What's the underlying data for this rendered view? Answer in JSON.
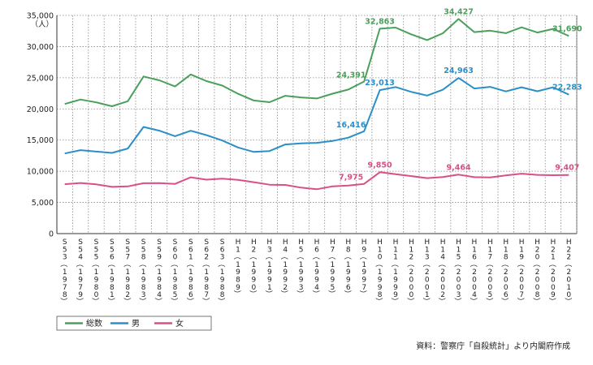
{
  "chart_data": {
    "type": "line",
    "y_unit": "（人）",
    "ylim": [
      0,
      35000
    ],
    "yticks": [
      "0",
      "5,000",
      "10,000",
      "15,000",
      "20,000",
      "25,000",
      "30,000",
      "35,000"
    ],
    "grid": "vertical and horizontal dotted",
    "categories": [
      "S53（1978）",
      "S54（1979）",
      "S55（1980）",
      "S56（1981）",
      "S57（1982）",
      "S58（1983）",
      "S59（1984）",
      "S60（1985）",
      "S61（1986）",
      "S62（1987）",
      "S63（1988）",
      "H1（1989）",
      "H2（1990）",
      "H3（1991）",
      "H4（1992）",
      "H5（1993）",
      "H6（1994）",
      "H7（1995）",
      "H8（1996）",
      "H9（1997）",
      "H10（1998）",
      "H11（1999）",
      "H12（2000）",
      "H13（2001）",
      "H14（2002）",
      "H15（2003）",
      "H16（2004）",
      "H17（2005）",
      "H18（2006）",
      "H19（2007）",
      "H20（2008）",
      "H21（2009）",
      "H22（2010）"
    ],
    "category_ticks": [
      [
        "S",
        "5",
        "3",
        "（",
        "1",
        "9",
        "7",
        "8",
        "）"
      ],
      [
        "S",
        "5",
        "4",
        "（",
        "1",
        "9",
        "7",
        "9",
        "）"
      ],
      [
        "S",
        "5",
        "5",
        "（",
        "1",
        "9",
        "8",
        "0",
        "）"
      ],
      [
        "S",
        "5",
        "6",
        "（",
        "1",
        "9",
        "8",
        "1",
        "）"
      ],
      [
        "S",
        "5",
        "7",
        "（",
        "1",
        "9",
        "8",
        "2",
        "）"
      ],
      [
        "S",
        "5",
        "8",
        "（",
        "1",
        "9",
        "8",
        "3",
        "）"
      ],
      [
        "S",
        "5",
        "9",
        "（",
        "1",
        "9",
        "8",
        "4",
        "）"
      ],
      [
        "S",
        "6",
        "0",
        "（",
        "1",
        "9",
        "8",
        "5",
        "）"
      ],
      [
        "S",
        "6",
        "1",
        "（",
        "1",
        "9",
        "8",
        "6",
        "）"
      ],
      [
        "S",
        "6",
        "2",
        "（",
        "1",
        "9",
        "8",
        "7",
        "）"
      ],
      [
        "S",
        "6",
        "3",
        "（",
        "1",
        "9",
        "8",
        "8",
        "）"
      ],
      [
        "H",
        "1",
        "（",
        "1",
        "9",
        "8",
        "9",
        "）"
      ],
      [
        "H",
        "2",
        "（",
        "1",
        "9",
        "9",
        "0",
        "）"
      ],
      [
        "H",
        "3",
        "（",
        "1",
        "9",
        "9",
        "1",
        "）"
      ],
      [
        "H",
        "4",
        "（",
        "1",
        "9",
        "9",
        "2",
        "）"
      ],
      [
        "H",
        "5",
        "（",
        "1",
        "9",
        "9",
        "3",
        "）"
      ],
      [
        "H",
        "6",
        "（",
        "1",
        "9",
        "9",
        "4",
        "）"
      ],
      [
        "H",
        "7",
        "（",
        "1",
        "9",
        "9",
        "5",
        "）"
      ],
      [
        "H",
        "8",
        "（",
        "1",
        "9",
        "9",
        "6",
        "）"
      ],
      [
        "H",
        "9",
        "（",
        "1",
        "9",
        "9",
        "7",
        "）"
      ],
      [
        "H",
        "1",
        "0",
        "（",
        "1",
        "9",
        "9",
        "8",
        "）"
      ],
      [
        "H",
        "1",
        "1",
        "（",
        "1",
        "9",
        "9",
        "9",
        "）"
      ],
      [
        "H",
        "1",
        "2",
        "（",
        "2",
        "0",
        "0",
        "0",
        "）"
      ],
      [
        "H",
        "1",
        "3",
        "（",
        "2",
        "0",
        "0",
        "1",
        "）"
      ],
      [
        "H",
        "1",
        "4",
        "（",
        "2",
        "0",
        "0",
        "2",
        "）"
      ],
      [
        "H",
        "1",
        "5",
        "（",
        "2",
        "0",
        "0",
        "3",
        "）"
      ],
      [
        "H",
        "1",
        "6",
        "（",
        "2",
        "0",
        "0",
        "4",
        "）"
      ],
      [
        "H",
        "1",
        "7",
        "（",
        "2",
        "0",
        "0",
        "5",
        "）"
      ],
      [
        "H",
        "1",
        "8",
        "（",
        "2",
        "0",
        "0",
        "6",
        "）"
      ],
      [
        "H",
        "1",
        "9",
        "（",
        "2",
        "0",
        "0",
        "7",
        "）"
      ],
      [
        "H",
        "2",
        "0",
        "（",
        "2",
        "0",
        "0",
        "8",
        "）"
      ],
      [
        "H",
        "2",
        "1",
        "（",
        "2",
        "0",
        "0",
        "9",
        "）"
      ],
      [
        "H",
        "2",
        "2",
        "（",
        "2",
        "0",
        "1",
        "0",
        "）"
      ]
    ],
    "series": [
      {
        "name": "総数",
        "color": "#4aa05a",
        "values": [
          20788,
          21503,
          21048,
          20434,
          21228,
          25202,
          24596,
          23599,
          25524,
          24460,
          23742,
          22436,
          21346,
          21084,
          22104,
          21851,
          21679,
          22445,
          23104,
          24391,
          32863,
          33048,
          31957,
          31042,
          32143,
          34427,
          32325,
          32552,
          32155,
          33093,
          32249,
          32845,
          31690
        ],
        "labels": [
          {
            "index": 19,
            "text": "24,391"
          },
          {
            "index": 20,
            "text": "32,863"
          },
          {
            "index": 25,
            "text": "34,427"
          },
          {
            "index": 32,
            "text": "31,690"
          }
        ]
      },
      {
        "name": "男",
        "color": "#2b8fc7",
        "values": [
          12859,
          13386,
          13155,
          12942,
          13654,
          17116,
          16508,
          15624,
          16499,
          15802,
          14934,
          13818,
          13102,
          13242,
          14296,
          14468,
          14560,
          14853,
          15393,
          16416,
          23013,
          23512,
          22727,
          22144,
          23080,
          24963,
          23272,
          23540,
          22813,
          23478,
          22831,
          23472,
          22283
        ],
        "labels": [
          {
            "index": 19,
            "text": "16,416"
          },
          {
            "index": 20,
            "text": "23,013"
          },
          {
            "index": 25,
            "text": "24,963"
          },
          {
            "index": 32,
            "text": "22,283"
          }
        ]
      },
      {
        "name": "女",
        "color": "#d94f86",
        "values": [
          7929,
          8117,
          7893,
          7492,
          7574,
          8086,
          8088,
          7975,
          9025,
          8658,
          8808,
          8618,
          8244,
          7842,
          7808,
          7383,
          7119,
          7592,
          7711,
          7975,
          9850,
          9536,
          9230,
          8898,
          9063,
          9464,
          9053,
          9012,
          9342,
          9615,
          9418,
          9373,
          9407
        ],
        "labels": [
          {
            "index": 19,
            "text": "7,975"
          },
          {
            "index": 20,
            "text": "9,850"
          },
          {
            "index": 25,
            "text": "9,464"
          },
          {
            "index": 32,
            "text": "9,407"
          }
        ]
      }
    ],
    "source": "資料：警察庁「自殺統計」より内閣府作成"
  }
}
